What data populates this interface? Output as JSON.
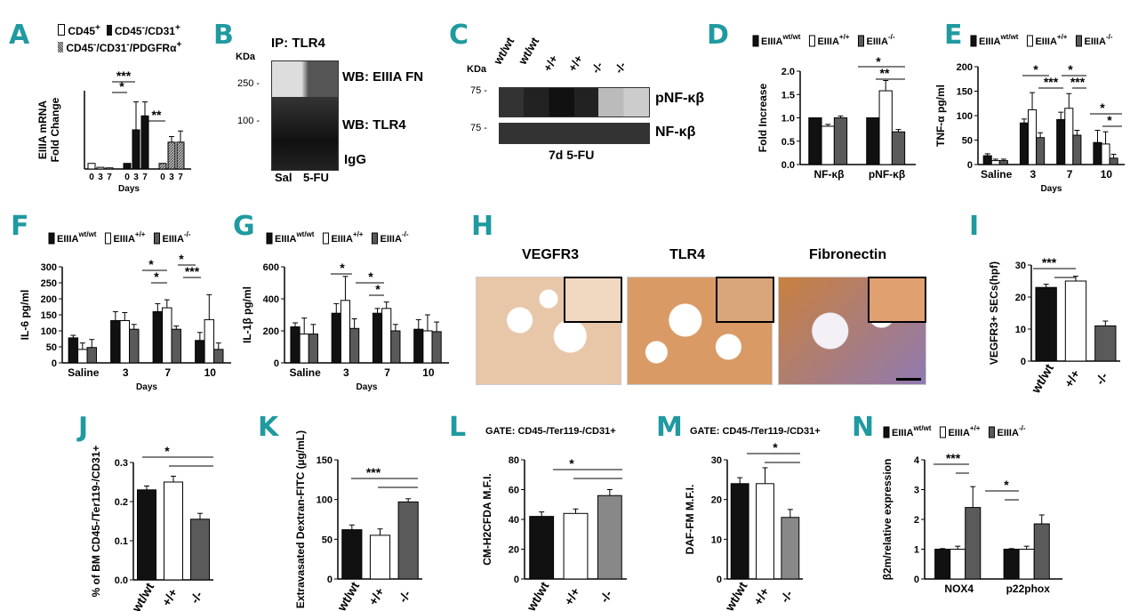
{
  "panel_letters": [
    "A",
    "B",
    "C",
    "D",
    "E",
    "F",
    "G",
    "H",
    "I",
    "J",
    "K",
    "L",
    "M",
    "N"
  ],
  "colors": {
    "black": "#111111",
    "white": "#ffffff",
    "grey": "#5a5a5a",
    "hatch": "#8f8f8f",
    "teal": "#1f9aa0"
  },
  "legend_eiiia": [
    "EIIIA",
    "wt/wt",
    "EIIIA",
    "+/+",
    "EIIIA",
    "-/-"
  ],
  "panelA": {
    "legend": [
      "CD45",
      "+",
      "CD45",
      "-",
      "/CD31",
      "+",
      "CD45",
      "-",
      "/CD31",
      "-",
      "/PDGFR",
      "α",
      "+"
    ],
    "ylabel_lines": [
      "EIIIA mRNA",
      "Fold Change"
    ],
    "xlabel": "Days",
    "stars": [
      "***",
      "*",
      "**"
    ]
  },
  "panelB": {
    "title": "IP: TLR4",
    "kda": "KDa",
    "markers": [
      "250 -",
      "100 -"
    ],
    "labels": [
      "WB: EIIIA FN",
      "WB: TLR4",
      "IgG"
    ],
    "lanes": [
      "Sal",
      "5-FU"
    ]
  },
  "panelC": {
    "kda": "KDa",
    "markers": [
      "75 -",
      "75 -"
    ],
    "lanes": [
      "wt/wt",
      "wt/wt",
      "+/+",
      "+/+",
      "-/-",
      "-/-"
    ],
    "labels": [
      "pNF-κβ",
      "NF-κβ"
    ],
    "caption": "7d 5-FU"
  },
  "panelH": {
    "titles": [
      "VEGFR3",
      "TLR4",
      "Fibronectin"
    ]
  },
  "panelL": {
    "gate": "GATE: CD45-/Ter119-/CD31+"
  },
  "panelM": {
    "gate": "GATE: CD45-/Ter119-/CD31+"
  },
  "chart_data": [
    {
      "panel": "A",
      "type": "bar",
      "series": [
        {
          "name": "CD45+",
          "x": [
            "0",
            "3",
            "7"
          ],
          "values": [
            1.0,
            0.3,
            0.2
          ],
          "err": [
            0,
            0,
            0
          ]
        },
        {
          "name": "CD45-/CD31+",
          "x": [
            "0",
            "3",
            "7"
          ],
          "values": [
            1.0,
            7.0,
            9.5
          ],
          "err": [
            0,
            5.0,
            2.5
          ]
        },
        {
          "name": "CD45-/CD31-/PDGFRα+",
          "x": [
            "0",
            "3",
            "7"
          ],
          "values": [
            1.0,
            4.8,
            4.8
          ],
          "err": [
            0,
            1.0,
            2.0
          ]
        }
      ],
      "ylim": [
        0,
        14
      ],
      "ylabel": "EIIIA mRNA Fold Change",
      "xlabel": "Days"
    },
    {
      "panel": "D",
      "type": "bar",
      "categories": [
        "NF-κβ",
        "pNF-κβ"
      ],
      "series": [
        {
          "name": "EIIIA wt/wt",
          "values": [
            1.0,
            1.0
          ],
          "err": [
            0,
            0
          ]
        },
        {
          "name": "EIIIA +/+",
          "values": [
            0.82,
            1.58
          ],
          "err": [
            0.04,
            0.22
          ]
        },
        {
          "name": "EIIIA -/-",
          "values": [
            1.0,
            0.7
          ],
          "err": [
            0.04,
            0.05
          ]
        }
      ],
      "ylim": [
        0,
        2.0
      ],
      "yticks": [
        "0.0",
        "0.5",
        "1.0",
        "1.5",
        "2.0"
      ],
      "ylabel": "Fold Increase",
      "stars": [
        "*",
        "**"
      ]
    },
    {
      "panel": "E",
      "type": "bar",
      "categories": [
        "Saline",
        "3",
        "7",
        "10"
      ],
      "series": [
        {
          "name": "EIIIA wt/wt",
          "values": [
            18,
            85,
            92,
            45
          ],
          "err": [
            4,
            8,
            15,
            25
          ]
        },
        {
          "name": "EIIIA +/+",
          "values": [
            8,
            112,
            115,
            42
          ],
          "err": [
            3,
            35,
            30,
            25
          ]
        },
        {
          "name": "EIIIA -/-",
          "values": [
            8,
            55,
            60,
            13
          ],
          "err": [
            3,
            10,
            10,
            8
          ]
        }
      ],
      "ylim": [
        0,
        200
      ],
      "yticks": [
        "0",
        "50",
        "100",
        "150",
        "200"
      ],
      "ylabel": "TNF-α pg/ml",
      "xlabel": "Days",
      "stars": [
        "*",
        "***",
        "*",
        "***",
        "*",
        "*"
      ]
    },
    {
      "panel": "F",
      "type": "bar",
      "categories": [
        "Saline",
        "3",
        "7",
        "10"
      ],
      "series": [
        {
          "name": "EIIIA wt/wt",
          "values": [
            78,
            132,
            160,
            70
          ],
          "err": [
            8,
            28,
            25,
            25
          ]
        },
        {
          "name": "EIIIA +/+",
          "values": [
            42,
            132,
            172,
            135
          ],
          "err": [
            20,
            25,
            25,
            78
          ]
        },
        {
          "name": "EIIIA -/-",
          "values": [
            48,
            105,
            105,
            42
          ],
          "err": [
            25,
            15,
            10,
            20
          ]
        }
      ],
      "ylim": [
        0,
        300
      ],
      "yticks": [
        "0",
        "50",
        "100",
        "150",
        "200",
        "250",
        "300"
      ],
      "ylabel": "IL-6 pg/ml",
      "xlabel": "Days",
      "stars": [
        "*",
        "*",
        "*",
        "***"
      ]
    },
    {
      "panel": "G",
      "type": "bar",
      "categories": [
        "Saline",
        "3",
        "7",
        "10"
      ],
      "series": [
        {
          "name": "EIIIA wt/wt",
          "values": [
            225,
            310,
            310,
            210
          ],
          "err": [
            25,
            60,
            30,
            60
          ]
        },
        {
          "name": "EIIIA +/+",
          "values": [
            180,
            390,
            340,
            200
          ],
          "err": [
            100,
            150,
            40,
            100
          ]
        },
        {
          "name": "EIIIA -/-",
          "values": [
            180,
            215,
            200,
            195
          ],
          "err": [
            60,
            60,
            40,
            60
          ]
        }
      ],
      "ylim": [
        0,
        600
      ],
      "yticks": [
        "0",
        "200",
        "400",
        "600"
      ],
      "ylabel": "IL-1β pg/ml",
      "xlabel": "Days",
      "stars": [
        "*",
        "*",
        "*"
      ]
    },
    {
      "panel": "I",
      "type": "bar",
      "categories": [
        "wt/wt",
        "+/+",
        "-/-"
      ],
      "values": [
        23,
        25,
        11
      ],
      "err": [
        1,
        1.5,
        1.5
      ],
      "ylim": [
        0,
        30
      ],
      "yticks": [
        "0",
        "10",
        "20",
        "30"
      ],
      "ylabel": "VEGFR3+ SECs(hpf)",
      "stars": [
        "***"
      ]
    },
    {
      "panel": "J",
      "type": "bar",
      "categories": [
        "wt/wt",
        "+/+",
        "-/-"
      ],
      "values": [
        0.23,
        0.25,
        0.155
      ],
      "err": [
        0.01,
        0.015,
        0.015
      ],
      "ylim": [
        0,
        0.3
      ],
      "yticks": [
        "0.0",
        "0.1",
        "0.2",
        "0.3"
      ],
      "ylabel": "% of BM CD45-/Ter119-/CD31+",
      "stars": [
        "*"
      ]
    },
    {
      "panel": "K",
      "type": "bar",
      "categories": [
        "wt/wt",
        "+/+",
        "-/-"
      ],
      "values": [
        62,
        55,
        97
      ],
      "err": [
        6,
        8,
        4
      ],
      "ylim": [
        0,
        150
      ],
      "yticks": [
        "0",
        "50",
        "100",
        "150"
      ],
      "ylabel": "Extravasated Dextran-FITC (µg/mL)",
      "stars": [
        "***"
      ]
    },
    {
      "panel": "L",
      "type": "bar",
      "categories": [
        "wt/wt",
        "+/+",
        "-/-"
      ],
      "values": [
        42,
        44,
        56
      ],
      "err": [
        3,
        3,
        4
      ],
      "ylim": [
        0,
        80
      ],
      "yticks": [
        "0",
        "20",
        "40",
        "60",
        "80"
      ],
      "ylabel": "CM-H2CFDA M.F.I.",
      "stars": [
        "*"
      ]
    },
    {
      "panel": "M",
      "type": "bar",
      "categories": [
        "wt/wt",
        "+/+",
        "-/-"
      ],
      "values": [
        24,
        24,
        15.5
      ],
      "err": [
        1.5,
        4,
        2
      ],
      "ylim": [
        0,
        30
      ],
      "yticks": [
        "0",
        "10",
        "20",
        "30"
      ],
      "ylabel": "DAF-FM M.F.I.",
      "stars": [
        "*"
      ]
    },
    {
      "panel": "N",
      "type": "bar",
      "categories": [
        "NOX4",
        "p22phox"
      ],
      "series": [
        {
          "name": "EIIIA wt/wt",
          "values": [
            1.0,
            1.0
          ],
          "err": [
            0.02,
            0.02
          ]
        },
        {
          "name": "EIIIA +/+",
          "values": [
            1.0,
            1.0
          ],
          "err": [
            0.1,
            0.1
          ]
        },
        {
          "name": "EIIIA -/-",
          "values": [
            2.4,
            1.85
          ],
          "err": [
            0.7,
            0.3
          ]
        }
      ],
      "ylim": [
        0,
        4
      ],
      "yticks": [
        "0",
        "1",
        "2",
        "3",
        "4"
      ],
      "ylabel": "β2m/relative expression",
      "stars": [
        "***",
        "*"
      ]
    }
  ]
}
